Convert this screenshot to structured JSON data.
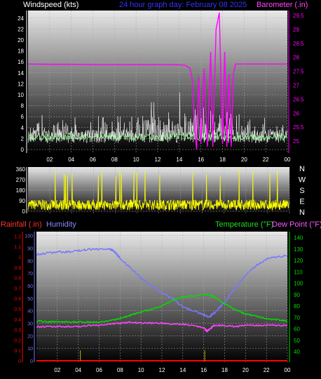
{
  "colors": {
    "windspeed": "#ffffff",
    "gust": "#c8c8c8",
    "avgwind": "#90ff90",
    "barometer": "#ff00ff",
    "direction": "#ffff00",
    "rainfall": "#ff0000",
    "humidity": "#7777ff",
    "temperature": "#00dd00",
    "dewpoint": "#ff44ff",
    "title": "#3333ff",
    "axis_white": "#ffffff",
    "rain_label": "#ff3333",
    "hum_label": "#8888ff",
    "temp_label": "#22dd22",
    "dew_label": "#ff55ff"
  },
  "title": "24 hour graph day:  February 08 2025",
  "x_ticks": [
    "02",
    "04",
    "06",
    "08",
    "10",
    "12",
    "14",
    "16",
    "18",
    "20",
    "22",
    "00"
  ],
  "chart_data": [
    {
      "type": "line",
      "ylabel_left": "Windspeed (kts)",
      "ylabel_right": "Barometer (.in)",
      "left_ticks": [
        "0",
        "2",
        "4",
        "6",
        "8",
        "10",
        "12",
        "14",
        "16",
        "18",
        "20",
        "22",
        "24"
      ],
      "right_ticks": [
        "25",
        "25.5",
        "26",
        "26.5",
        "27",
        "27.5",
        "28",
        "28.5",
        "29",
        "29.5"
      ],
      "ylim_left": [
        0,
        25
      ],
      "ylim_right": [
        24.7,
        29.6
      ],
      "series": [
        {
          "key": "barometer",
          "axis": "right",
          "x": [
            0.0,
            2,
            4,
            6,
            8,
            10,
            12,
            13.5,
            14.5,
            15.0,
            15.2,
            15.4,
            15.6,
            15.8,
            16.0,
            16.3,
            16.6,
            16.9,
            17.1,
            17.4,
            17.7,
            18.0,
            18.2,
            18.4,
            18.6,
            18.8,
            19.0,
            19.2,
            20,
            22,
            24
          ],
          "y": [
            27.76,
            27.75,
            27.75,
            27.74,
            27.74,
            27.74,
            27.74,
            27.74,
            27.72,
            27.6,
            27.2,
            25.5,
            24.7,
            27.3,
            24.9,
            27.6,
            24.8,
            28.2,
            24.8,
            29.0,
            29.6,
            24.9,
            28.2,
            24.8,
            27.4,
            24.8,
            27.4,
            27.76,
            27.76,
            27.76,
            27.76
          ]
        }
      ]
    },
    {
      "type": "line",
      "left_ticks": [
        "0",
        "90",
        "180",
        "270",
        "360"
      ],
      "right_labels": [
        "N",
        "W",
        "S",
        "E",
        "N"
      ],
      "ylim": [
        0,
        360
      ],
      "series": [
        {
          "key": "direction",
          "seed": 7,
          "baseline": 55,
          "spread": 45
        }
      ]
    },
    {
      "type": "line",
      "ylabel_left_1": "Rainfall (.in)",
      "ylabel_left_2": "Humidity",
      "ylabel_right_1": "Temperature (°F)",
      "ylabel_right_2": "Dew Point (°F)",
      "rain_ticks": [
        "0",
        "0.1",
        "0.2",
        "0.3",
        "0.4",
        "0.5",
        "0.6",
        "0.7",
        "0.8",
        "0.9",
        "1",
        "1.1",
        "1.2"
      ],
      "humidity_ticks": [
        "0",
        "10",
        "20",
        "30",
        "40",
        "50",
        "60",
        "70",
        "80",
        "90",
        "100"
      ],
      "temp_ticks": [
        "40",
        "50",
        "60",
        "70",
        "80",
        "90",
        "100",
        "110",
        "120",
        "130",
        "140"
      ],
      "ylim_rain": [
        0,
        1.23
      ],
      "ylim_humidity": [
        0,
        102
      ],
      "ylim_temp": [
        32,
        144
      ],
      "series": [
        {
          "key": "humidity",
          "axis": "humidity",
          "x": [
            0,
            1,
            2,
            3,
            4,
            5,
            6,
            7,
            7.5,
            8,
            9,
            10,
            11,
            12,
            13,
            14,
            15,
            16,
            16.5,
            17,
            18,
            19,
            20,
            21,
            22,
            23,
            24
          ],
          "y": [
            85,
            86,
            87,
            87,
            88,
            89,
            89,
            89,
            87,
            82,
            74,
            66,
            60,
            54,
            50,
            43,
            40,
            37,
            35,
            38,
            47,
            58,
            68,
            76,
            81,
            83,
            84
          ]
        },
        {
          "key": "temperature",
          "axis": "temp",
          "x": [
            0,
            1,
            2,
            3,
            4,
            5,
            6,
            7,
            8,
            9,
            10,
            11,
            12,
            13,
            14,
            15,
            16,
            16.5,
            17,
            18,
            19,
            20,
            21,
            22,
            23,
            24
          ],
          "y": [
            67,
            66,
            66,
            66,
            66,
            66,
            66,
            67,
            69,
            72,
            75,
            77,
            80,
            85,
            88,
            89,
            90,
            90,
            88,
            82,
            77,
            73,
            71,
            69,
            68,
            67
          ]
        },
        {
          "key": "dewpoint",
          "axis": "temp",
          "x": [
            0,
            1,
            2,
            3,
            4,
            5,
            6,
            7,
            8,
            9,
            10,
            11,
            12,
            13,
            14,
            15,
            16,
            16.3,
            16.6,
            17,
            18,
            19,
            20,
            21,
            22,
            23,
            24
          ],
          "y": [
            62,
            62,
            62,
            62,
            62,
            63,
            63,
            64,
            65,
            66,
            65,
            65,
            65,
            64,
            64,
            63,
            61,
            58,
            60,
            63,
            63,
            62,
            63,
            63,
            63,
            63,
            63
          ]
        },
        {
          "key": "rainfall",
          "axis": "rain",
          "x": [
            0,
            24
          ],
          "y": [
            0.0,
            0.0
          ],
          "spikes": [
            {
              "x": 4.2,
              "y": 0.1
            },
            {
              "x": 16.1,
              "y": 0.1
            }
          ]
        }
      ]
    }
  ]
}
